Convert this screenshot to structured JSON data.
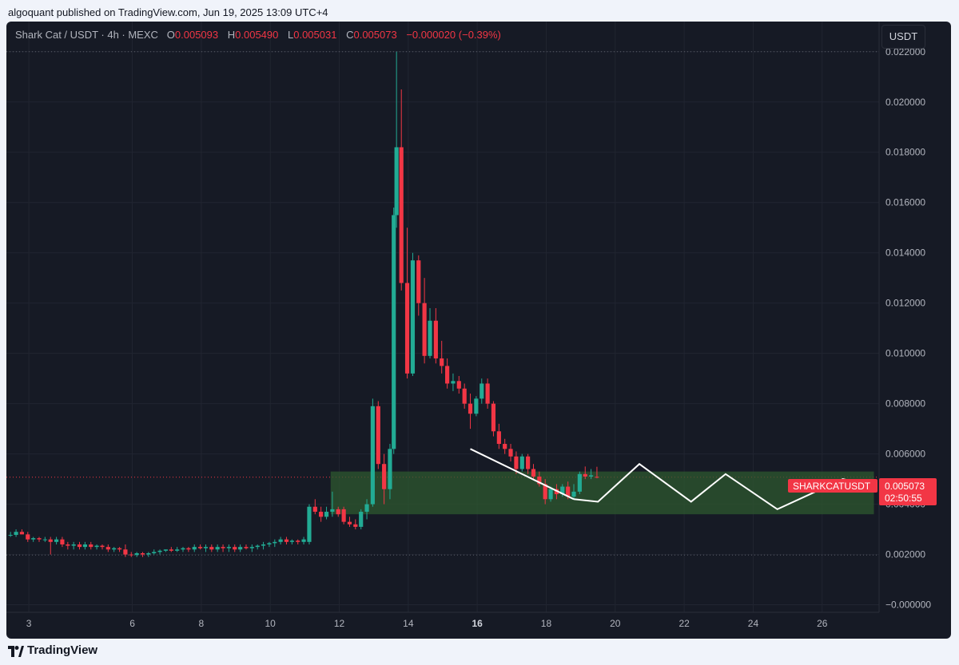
{
  "header": {
    "publisher_line": "algoquant published on TradingView.com, Jun 19, 2025 13:09 UTC+4"
  },
  "legend": {
    "symbol": "Shark Cat / USDT · 4h · MEXC",
    "open_label": "O",
    "open": "0.005093",
    "high_label": "H",
    "high": "0.005490",
    "low_label": "L",
    "low": "0.005031",
    "close_label": "C",
    "close": "0.005073",
    "change": "−0.000020 (−0.39%)"
  },
  "toolbar": {
    "currency_label": "USDT"
  },
  "price_tag": {
    "symbol": "SHARKCATUSDT",
    "price": "0.005073",
    "countdown": "02:50:55"
  },
  "footer": {
    "brand": "TradingView"
  },
  "colors": {
    "up": "#22ab94",
    "down": "#f23645",
    "background": "#161a25",
    "zone": "#2e5a2f",
    "projection": "#ffffff"
  },
  "chart_data": {
    "type": "candlestick",
    "interval": "4h",
    "x_unit": "day of month (June 2025)",
    "xlim": [
      2.35,
      27.65
    ],
    "ylim": [
      -0.0003,
      0.0232
    ],
    "x_ticks": [
      3,
      6,
      8,
      10,
      12,
      14,
      16,
      18,
      20,
      22,
      24,
      26
    ],
    "x_tick_labels": [
      "3",
      "6",
      "8",
      "10",
      "12",
      "14",
      "16",
      "18",
      "20",
      "22",
      "24",
      "26"
    ],
    "y_ticks": [
      0.022,
      0.02,
      0.018,
      0.016,
      0.014,
      0.012,
      0.01,
      0.008,
      0.006,
      0.004,
      0.002,
      0.0
    ],
    "y_tick_labels": [
      "0.022000",
      "0.020000",
      "0.018000",
      "0.016000",
      "0.014000",
      "0.012000",
      "0.010000",
      "0.008000",
      "0.006000",
      "0.004000",
      "0.002000",
      "−0.000000"
    ],
    "grid": true,
    "last_price": 0.005073,
    "dotted_levels": [
      0.022,
      0.00198
    ],
    "zone": {
      "x_start": 11.75,
      "x_end": 27.5,
      "y_low": 0.0036,
      "y_high": 0.0053
    },
    "trendline": [
      [
        15.8,
        0.0062
      ],
      [
        18.8,
        0.0042
      ]
    ],
    "projection": [
      [
        18.8,
        0.0042
      ],
      [
        19.5,
        0.0041
      ],
      [
        20.7,
        0.0056
      ],
      [
        22.2,
        0.0041
      ],
      [
        23.2,
        0.0052
      ],
      [
        24.7,
        0.0038
      ],
      [
        26.6,
        0.005
      ],
      [
        27.5,
        0.0047
      ]
    ],
    "candles": [
      {
        "x": 2.47,
        "o": 0.00275,
        "h": 0.0029,
        "l": 0.0027,
        "c": 0.00278
      },
      {
        "x": 2.63,
        "o": 0.00278,
        "h": 0.003,
        "l": 0.0027,
        "c": 0.0029
      },
      {
        "x": 2.8,
        "o": 0.0029,
        "h": 0.003,
        "l": 0.0028,
        "c": 0.0028
      },
      {
        "x": 2.97,
        "o": 0.0028,
        "h": 0.0029,
        "l": 0.0025,
        "c": 0.0026
      },
      {
        "x": 3.13,
        "o": 0.0026,
        "h": 0.0027,
        "l": 0.0025,
        "c": 0.00265
      },
      {
        "x": 3.3,
        "o": 0.00265,
        "h": 0.0027,
        "l": 0.0025,
        "c": 0.0026
      },
      {
        "x": 3.47,
        "o": 0.0026,
        "h": 0.0027,
        "l": 0.0025,
        "c": 0.0026
      },
      {
        "x": 3.63,
        "o": 0.0026,
        "h": 0.0027,
        "l": 0.002,
        "c": 0.0025
      },
      {
        "x": 3.8,
        "o": 0.0025,
        "h": 0.0027,
        "l": 0.0024,
        "c": 0.0026
      },
      {
        "x": 3.97,
        "o": 0.0026,
        "h": 0.0027,
        "l": 0.0023,
        "c": 0.0024
      },
      {
        "x": 4.13,
        "o": 0.0024,
        "h": 0.0025,
        "l": 0.0022,
        "c": 0.00235
      },
      {
        "x": 4.3,
        "o": 0.00235,
        "h": 0.0025,
        "l": 0.0022,
        "c": 0.0024
      },
      {
        "x": 4.47,
        "o": 0.0024,
        "h": 0.0025,
        "l": 0.0022,
        "c": 0.0023
      },
      {
        "x": 4.63,
        "o": 0.0023,
        "h": 0.0025,
        "l": 0.0022,
        "c": 0.0024
      },
      {
        "x": 4.8,
        "o": 0.0024,
        "h": 0.0025,
        "l": 0.0022,
        "c": 0.0023
      },
      {
        "x": 4.97,
        "o": 0.0023,
        "h": 0.0024,
        "l": 0.0022,
        "c": 0.00235
      },
      {
        "x": 5.13,
        "o": 0.00235,
        "h": 0.0024,
        "l": 0.0022,
        "c": 0.0023
      },
      {
        "x": 5.3,
        "o": 0.0023,
        "h": 0.0024,
        "l": 0.0021,
        "c": 0.0022
      },
      {
        "x": 5.47,
        "o": 0.0022,
        "h": 0.0023,
        "l": 0.0021,
        "c": 0.00225
      },
      {
        "x": 5.63,
        "o": 0.00225,
        "h": 0.0023,
        "l": 0.0021,
        "c": 0.0022
      },
      {
        "x": 5.8,
        "o": 0.0022,
        "h": 0.0024,
        "l": 0.0019,
        "c": 0.002
      },
      {
        "x": 5.97,
        "o": 0.002,
        "h": 0.0021,
        "l": 0.0019,
        "c": 0.00198
      },
      {
        "x": 6.13,
        "o": 0.00198,
        "h": 0.0021,
        "l": 0.0019,
        "c": 0.00205
      },
      {
        "x": 6.3,
        "o": 0.00205,
        "h": 0.0021,
        "l": 0.0019,
        "c": 0.002
      },
      {
        "x": 6.47,
        "o": 0.002,
        "h": 0.0021,
        "l": 0.0019,
        "c": 0.00205
      },
      {
        "x": 6.63,
        "o": 0.00205,
        "h": 0.0022,
        "l": 0.002,
        "c": 0.0021
      },
      {
        "x": 6.8,
        "o": 0.0021,
        "h": 0.0022,
        "l": 0.002,
        "c": 0.00215
      },
      {
        "x": 6.97,
        "o": 0.00215,
        "h": 0.0022,
        "l": 0.0021,
        "c": 0.0022
      },
      {
        "x": 7.13,
        "o": 0.0022,
        "h": 0.0023,
        "l": 0.0021,
        "c": 0.00215
      },
      {
        "x": 7.3,
        "o": 0.00215,
        "h": 0.0023,
        "l": 0.0021,
        "c": 0.0022
      },
      {
        "x": 7.47,
        "o": 0.0022,
        "h": 0.0023,
        "l": 0.0021,
        "c": 0.00225
      },
      {
        "x": 7.63,
        "o": 0.00225,
        "h": 0.0023,
        "l": 0.0021,
        "c": 0.0022
      },
      {
        "x": 7.8,
        "o": 0.0022,
        "h": 0.0024,
        "l": 0.0021,
        "c": 0.0023
      },
      {
        "x": 7.97,
        "o": 0.0023,
        "h": 0.0024,
        "l": 0.0022,
        "c": 0.00225
      },
      {
        "x": 8.13,
        "o": 0.00225,
        "h": 0.0024,
        "l": 0.0021,
        "c": 0.0023
      },
      {
        "x": 8.3,
        "o": 0.0023,
        "h": 0.0024,
        "l": 0.0021,
        "c": 0.0022
      },
      {
        "x": 8.47,
        "o": 0.0022,
        "h": 0.0024,
        "l": 0.0021,
        "c": 0.0023
      },
      {
        "x": 8.63,
        "o": 0.0023,
        "h": 0.0024,
        "l": 0.0021,
        "c": 0.00225
      },
      {
        "x": 8.8,
        "o": 0.00225,
        "h": 0.0024,
        "l": 0.0021,
        "c": 0.0023
      },
      {
        "x": 8.97,
        "o": 0.0023,
        "h": 0.0024,
        "l": 0.0021,
        "c": 0.0022
      },
      {
        "x": 9.13,
        "o": 0.0022,
        "h": 0.0024,
        "l": 0.0021,
        "c": 0.0023
      },
      {
        "x": 9.3,
        "o": 0.0023,
        "h": 0.0024,
        "l": 0.0022,
        "c": 0.00225
      },
      {
        "x": 9.47,
        "o": 0.00225,
        "h": 0.0024,
        "l": 0.0021,
        "c": 0.0023
      },
      {
        "x": 9.63,
        "o": 0.0023,
        "h": 0.0024,
        "l": 0.0022,
        "c": 0.00235
      },
      {
        "x": 9.8,
        "o": 0.00235,
        "h": 0.0025,
        "l": 0.0022,
        "c": 0.0024
      },
      {
        "x": 9.97,
        "o": 0.0024,
        "h": 0.0025,
        "l": 0.0023,
        "c": 0.00245
      },
      {
        "x": 10.13,
        "o": 0.00245,
        "h": 0.0026,
        "l": 0.0023,
        "c": 0.0025
      },
      {
        "x": 10.3,
        "o": 0.0025,
        "h": 0.0027,
        "l": 0.0024,
        "c": 0.0026
      },
      {
        "x": 10.47,
        "o": 0.0026,
        "h": 0.0027,
        "l": 0.0024,
        "c": 0.0025
      },
      {
        "x": 10.63,
        "o": 0.0025,
        "h": 0.0026,
        "l": 0.0024,
        "c": 0.00255
      },
      {
        "x": 10.8,
        "o": 0.00255,
        "h": 0.0026,
        "l": 0.0024,
        "c": 0.0025
      },
      {
        "x": 10.97,
        "o": 0.0025,
        "h": 0.0027,
        "l": 0.0024,
        "c": 0.0026
      },
      {
        "x": 11.13,
        "o": 0.0025,
        "h": 0.004,
        "l": 0.0024,
        "c": 0.0039
      },
      {
        "x": 11.3,
        "o": 0.0039,
        "h": 0.0042,
        "l": 0.0036,
        "c": 0.0037
      },
      {
        "x": 11.47,
        "o": 0.0037,
        "h": 0.0039,
        "l": 0.0033,
        "c": 0.0035
      },
      {
        "x": 11.63,
        "o": 0.0035,
        "h": 0.0039,
        "l": 0.0034,
        "c": 0.0037
      },
      {
        "x": 11.8,
        "o": 0.0037,
        "h": 0.0045,
        "l": 0.0035,
        "c": 0.0038
      },
      {
        "x": 11.97,
        "o": 0.0038,
        "h": 0.0039,
        "l": 0.0035,
        "c": 0.0036
      },
      {
        "x": 12.13,
        "o": 0.0038,
        "h": 0.0039,
        "l": 0.0032,
        "c": 0.0033
      },
      {
        "x": 12.3,
        "o": 0.0033,
        "h": 0.0035,
        "l": 0.0031,
        "c": 0.0032
      },
      {
        "x": 12.47,
        "o": 0.0032,
        "h": 0.0034,
        "l": 0.003,
        "c": 0.0031
      },
      {
        "x": 12.63,
        "o": 0.0031,
        "h": 0.0038,
        "l": 0.003,
        "c": 0.0037
      },
      {
        "x": 12.8,
        "o": 0.0037,
        "h": 0.0042,
        "l": 0.0034,
        "c": 0.004
      },
      {
        "x": 12.97,
        "o": 0.004,
        "h": 0.0082,
        "l": 0.0039,
        "c": 0.0079
      },
      {
        "x": 13.13,
        "o": 0.0079,
        "h": 0.0081,
        "l": 0.0054,
        "c": 0.0056
      },
      {
        "x": 13.3,
        "o": 0.0056,
        "h": 0.006,
        "l": 0.004,
        "c": 0.0046
      },
      {
        "x": 13.47,
        "o": 0.0046,
        "h": 0.0064,
        "l": 0.0042,
        "c": 0.0062
      },
      {
        "x": 13.58,
        "o": 0.0062,
        "h": 0.0158,
        "l": 0.006,
        "c": 0.0155
      },
      {
        "x": 13.66,
        "o": 0.0155,
        "h": 0.022,
        "l": 0.015,
        "c": 0.0182
      },
      {
        "x": 13.8,
        "o": 0.0182,
        "h": 0.0205,
        "l": 0.0125,
        "c": 0.0128
      },
      {
        "x": 13.97,
        "o": 0.0128,
        "h": 0.015,
        "l": 0.009,
        "c": 0.0092
      },
      {
        "x": 14.13,
        "o": 0.0092,
        "h": 0.014,
        "l": 0.0091,
        "c": 0.0137
      },
      {
        "x": 14.3,
        "o": 0.0137,
        "h": 0.0139,
        "l": 0.0115,
        "c": 0.012
      },
      {
        "x": 14.47,
        "o": 0.012,
        "h": 0.013,
        "l": 0.0096,
        "c": 0.0099
      },
      {
        "x": 14.63,
        "o": 0.0099,
        "h": 0.0118,
        "l": 0.0098,
        "c": 0.0113
      },
      {
        "x": 14.8,
        "o": 0.0113,
        "h": 0.0118,
        "l": 0.0096,
        "c": 0.0098
      },
      {
        "x": 14.97,
        "o": 0.0098,
        "h": 0.0105,
        "l": 0.0092,
        "c": 0.0095
      },
      {
        "x": 15.13,
        "o": 0.0095,
        "h": 0.0098,
        "l": 0.0086,
        "c": 0.0088
      },
      {
        "x": 15.3,
        "o": 0.0088,
        "h": 0.0092,
        "l": 0.0085,
        "c": 0.0089
      },
      {
        "x": 15.47,
        "o": 0.0089,
        "h": 0.0091,
        "l": 0.0084,
        "c": 0.0086
      },
      {
        "x": 15.63,
        "o": 0.0086,
        "h": 0.0088,
        "l": 0.0078,
        "c": 0.008
      },
      {
        "x": 15.8,
        "o": 0.008,
        "h": 0.0084,
        "l": 0.007,
        "c": 0.0076
      },
      {
        "x": 15.97,
        "o": 0.0076,
        "h": 0.0083,
        "l": 0.0075,
        "c": 0.0082
      },
      {
        "x": 16.13,
        "o": 0.0082,
        "h": 0.009,
        "l": 0.008,
        "c": 0.0088
      },
      {
        "x": 16.3,
        "o": 0.0088,
        "h": 0.009,
        "l": 0.0078,
        "c": 0.008
      },
      {
        "x": 16.47,
        "o": 0.008,
        "h": 0.0081,
        "l": 0.0067,
        "c": 0.0069
      },
      {
        "x": 16.63,
        "o": 0.0069,
        "h": 0.0072,
        "l": 0.0062,
        "c": 0.0064
      },
      {
        "x": 16.8,
        "o": 0.0064,
        "h": 0.0066,
        "l": 0.006,
        "c": 0.0062
      },
      {
        "x": 16.97,
        "o": 0.0062,
        "h": 0.0064,
        "l": 0.0057,
        "c": 0.0059
      },
      {
        "x": 17.13,
        "o": 0.0059,
        "h": 0.0061,
        "l": 0.0052,
        "c": 0.0054
      },
      {
        "x": 17.3,
        "o": 0.0054,
        "h": 0.006,
        "l": 0.0053,
        "c": 0.0059
      },
      {
        "x": 17.47,
        "o": 0.0059,
        "h": 0.006,
        "l": 0.0052,
        "c": 0.0054
      },
      {
        "x": 17.63,
        "o": 0.0054,
        "h": 0.0056,
        "l": 0.005,
        "c": 0.0051
      },
      {
        "x": 17.8,
        "o": 0.0051,
        "h": 0.0053,
        "l": 0.0047,
        "c": 0.0048
      },
      {
        "x": 17.97,
        "o": 0.0048,
        "h": 0.005,
        "l": 0.004,
        "c": 0.0042
      },
      {
        "x": 18.13,
        "o": 0.0042,
        "h": 0.0047,
        "l": 0.0041,
        "c": 0.0046
      },
      {
        "x": 18.3,
        "o": 0.0046,
        "h": 0.0048,
        "l": 0.0042,
        "c": 0.0044
      },
      {
        "x": 18.47,
        "o": 0.0044,
        "h": 0.0048,
        "l": 0.0043,
        "c": 0.0047
      },
      {
        "x": 18.63,
        "o": 0.0047,
        "h": 0.0049,
        "l": 0.0042,
        "c": 0.0043
      },
      {
        "x": 18.8,
        "o": 0.0043,
        "h": 0.0048,
        "l": 0.0042,
        "c": 0.0045
      },
      {
        "x": 18.97,
        "o": 0.0045,
        "h": 0.0053,
        "l": 0.0044,
        "c": 0.0052
      },
      {
        "x": 19.13,
        "o": 0.0052,
        "h": 0.0055,
        "l": 0.005,
        "c": 0.0051
      },
      {
        "x": 19.3,
        "o": 0.0051,
        "h": 0.0054,
        "l": 0.005,
        "c": 0.00515
      },
      {
        "x": 19.47,
        "o": 0.00509,
        "h": 0.00549,
        "l": 0.00503,
        "c": 0.00507
      }
    ]
  }
}
